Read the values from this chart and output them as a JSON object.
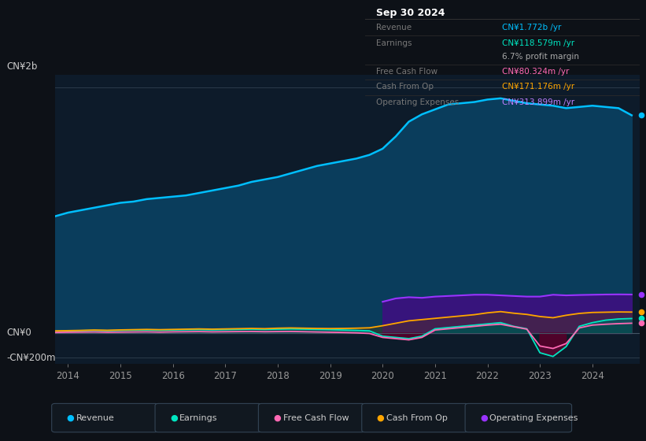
{
  "bg_color": "#0d1117",
  "plot_bg_color": "#0d1b2a",
  "title_box": {
    "date": "Sep 30 2024",
    "rows": [
      {
        "label": "Revenue",
        "value": "CN¥1.772b /yr",
        "value_color": "#00bfff"
      },
      {
        "label": "Earnings",
        "value": "CN¥118.579m /yr",
        "value_color": "#00e5c0"
      },
      {
        "label": "",
        "value": "6.7% profit margin",
        "value_color": "#aaaaaa"
      },
      {
        "label": "Free Cash Flow",
        "value": "CN¥80.324m /yr",
        "value_color": "#ff69b4"
      },
      {
        "label": "Cash From Op",
        "value": "CN¥171.176m /yr",
        "value_color": "#ffa500"
      },
      {
        "label": "Operating Expenses",
        "value": "CN¥313.899m /yr",
        "value_color": "#bf7fff"
      }
    ]
  },
  "y_label_top": "CN¥2b",
  "y_label_zero": "CN¥0",
  "y_label_bottom": "-CN¥200m",
  "x_ticks": [
    2014,
    2015,
    2016,
    2017,
    2018,
    2019,
    2020,
    2021,
    2022,
    2023,
    2024
  ],
  "ylim_min": -250000000,
  "ylim_max": 2100000000,
  "revenue_color": "#00bfff",
  "earnings_color": "#00e5c0",
  "fcf_color": "#ff69b4",
  "cashfromop_color": "#ffa500",
  "opex_color": "#9933ff",
  "revenue_fill_color": "#0a3d5c",
  "legend_items": [
    {
      "label": "Revenue",
      "color": "#00bfff"
    },
    {
      "label": "Earnings",
      "color": "#00e5c0"
    },
    {
      "label": "Free Cash Flow",
      "color": "#ff69b4"
    },
    {
      "label": "Cash From Op",
      "color": "#ffa500"
    },
    {
      "label": "Operating Expenses",
      "color": "#9933ff"
    }
  ],
  "years": [
    2013.75,
    2014.0,
    2014.25,
    2014.5,
    2014.75,
    2015.0,
    2015.25,
    2015.5,
    2015.75,
    2016.0,
    2016.25,
    2016.5,
    2016.75,
    2017.0,
    2017.25,
    2017.5,
    2017.75,
    2018.0,
    2018.25,
    2018.5,
    2018.75,
    2019.0,
    2019.25,
    2019.5,
    2019.75,
    2020.0,
    2020.25,
    2020.5,
    2020.75,
    2021.0,
    2021.25,
    2021.5,
    2021.75,
    2022.0,
    2022.25,
    2022.5,
    2022.75,
    2023.0,
    2023.25,
    2023.5,
    2023.75,
    2024.0,
    2024.25,
    2024.5,
    2024.75
  ],
  "revenue": [
    950000000,
    980000000,
    1000000000,
    1020000000,
    1040000000,
    1060000000,
    1070000000,
    1090000000,
    1100000000,
    1110000000,
    1120000000,
    1140000000,
    1160000000,
    1180000000,
    1200000000,
    1230000000,
    1250000000,
    1270000000,
    1300000000,
    1330000000,
    1360000000,
    1380000000,
    1400000000,
    1420000000,
    1450000000,
    1500000000,
    1600000000,
    1720000000,
    1780000000,
    1820000000,
    1860000000,
    1870000000,
    1880000000,
    1900000000,
    1910000000,
    1890000000,
    1870000000,
    1860000000,
    1850000000,
    1830000000,
    1840000000,
    1850000000,
    1840000000,
    1830000000,
    1772000000
  ],
  "earnings": [
    15000000,
    18000000,
    20000000,
    22000000,
    20000000,
    22000000,
    24000000,
    25000000,
    23000000,
    25000000,
    27000000,
    28000000,
    26000000,
    28000000,
    30000000,
    32000000,
    30000000,
    32000000,
    34000000,
    32000000,
    30000000,
    28000000,
    25000000,
    22000000,
    18000000,
    -25000000,
    -35000000,
    -45000000,
    -25000000,
    35000000,
    45000000,
    55000000,
    65000000,
    75000000,
    85000000,
    55000000,
    35000000,
    -160000000,
    -190000000,
    -110000000,
    55000000,
    85000000,
    105000000,
    115000000,
    118579000
  ],
  "fcf": [
    5000000,
    7000000,
    8000000,
    9000000,
    7000000,
    8000000,
    9000000,
    10000000,
    8000000,
    10000000,
    11000000,
    12000000,
    10000000,
    11000000,
    12000000,
    13000000,
    11000000,
    12000000,
    13000000,
    11000000,
    9000000,
    7000000,
    5000000,
    2000000,
    -3000000,
    -35000000,
    -45000000,
    -55000000,
    -35000000,
    25000000,
    35000000,
    45000000,
    55000000,
    65000000,
    72000000,
    52000000,
    32000000,
    -105000000,
    -125000000,
    -85000000,
    42000000,
    65000000,
    72000000,
    77000000,
    80324000
  ],
  "cashfromop": [
    18000000,
    20000000,
    22000000,
    25000000,
    23000000,
    26000000,
    28000000,
    30000000,
    28000000,
    30000000,
    32000000,
    34000000,
    32000000,
    34000000,
    36000000,
    38000000,
    36000000,
    40000000,
    42000000,
    40000000,
    38000000,
    37000000,
    38000000,
    40000000,
    43000000,
    60000000,
    80000000,
    100000000,
    110000000,
    120000000,
    130000000,
    140000000,
    150000000,
    165000000,
    175000000,
    162000000,
    152000000,
    135000000,
    125000000,
    145000000,
    160000000,
    168000000,
    170000000,
    172000000,
    171176000
  ],
  "opex": [
    0,
    0,
    0,
    0,
    0,
    0,
    0,
    0,
    0,
    0,
    0,
    0,
    0,
    0,
    0,
    0,
    0,
    0,
    0,
    0,
    0,
    0,
    0,
    0,
    0,
    255000000,
    282000000,
    292000000,
    287000000,
    297000000,
    302000000,
    307000000,
    312000000,
    312000000,
    307000000,
    302000000,
    297000000,
    297000000,
    312000000,
    307000000,
    310000000,
    312000000,
    314000000,
    315000000,
    313899000
  ]
}
